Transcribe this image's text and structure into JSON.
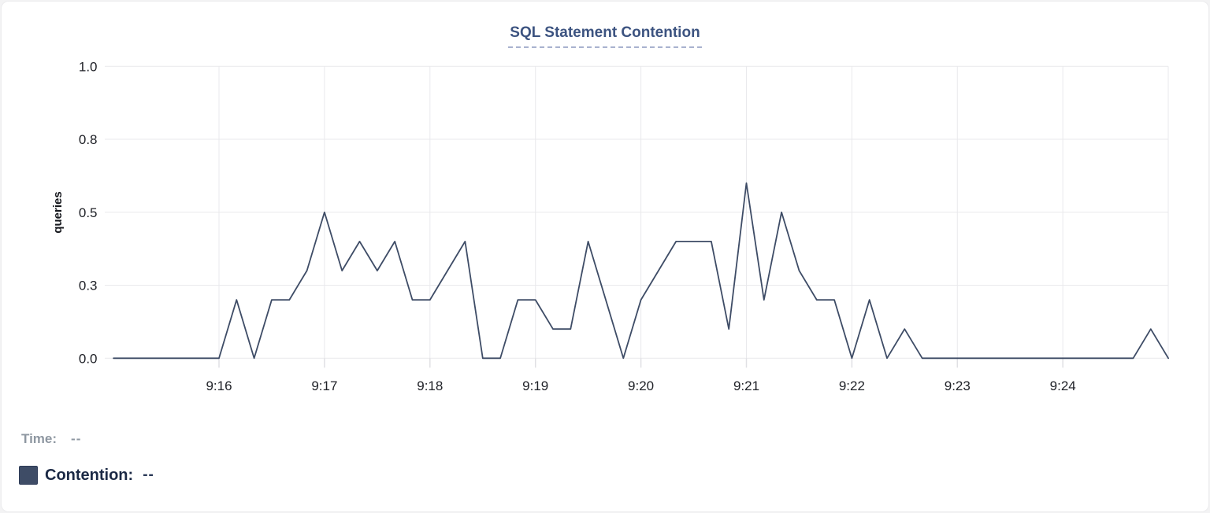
{
  "title": "SQL Statement Contention",
  "colors": {
    "card_bg": "#FFFFFF",
    "page_bg": "#F3F3F4",
    "title": "#3C5380",
    "title_underline": "#A9B2CF",
    "grid": "#E9E9EC",
    "tick_mark": "#E0E0E4",
    "tick_text": "#202228",
    "axis_label_text": "#15171C",
    "line": "#3E4C66",
    "legend_swatch": "#3E4C66",
    "time_label": "#8E97A1",
    "contention_text": "#1B2945",
    "contention_value": "#2A3857"
  },
  "legend": {
    "time_label": "Time:",
    "time_value": "--",
    "contention_label": "Contention:",
    "contention_value": "--"
  },
  "chart_data": {
    "type": "line",
    "title": "SQL Statement Contention",
    "xlabel": "",
    "ylabel": "queries",
    "ylim": [
      0,
      1
    ],
    "grid": true,
    "legend_position": "bottom-left",
    "y_ticks": [
      {
        "value": 1.0,
        "label": "1.0"
      },
      {
        "value": 0.75,
        "label": "0.8"
      },
      {
        "value": 0.5,
        "label": "0.5"
      },
      {
        "value": 0.25,
        "label": "0.3"
      },
      {
        "value": 0.0,
        "label": "0.0"
      }
    ],
    "x_ticks": [
      "9:16",
      "9:17",
      "9:18",
      "9:19",
      "9:20",
      "9:21",
      "9:22",
      "9:23",
      "9:24"
    ],
    "x_start": "9:15:00",
    "x_end": "9:25:00",
    "interval_seconds": 10,
    "series": [
      {
        "name": "Contention",
        "unit": "queries",
        "values": [
          0,
          0,
          0,
          0,
          0,
          0,
          0,
          0.2,
          0,
          0.2,
          0.2,
          0.3,
          0.5,
          0.3,
          0.4,
          0.3,
          0.4,
          0.2,
          0.2,
          0.3,
          0.4,
          0,
          0,
          0.2,
          0.2,
          0.1,
          0.1,
          0.4,
          0.2,
          0,
          0.2,
          0.3,
          0.4,
          0.4,
          0.4,
          0.1,
          0.6,
          0.2,
          0.5,
          0.3,
          0.2,
          0.2,
          0,
          0.2,
          0,
          0.1,
          0,
          0,
          0,
          0,
          0,
          0,
          0,
          0,
          0,
          0,
          0,
          0,
          0,
          0.1,
          0
        ]
      }
    ]
  }
}
